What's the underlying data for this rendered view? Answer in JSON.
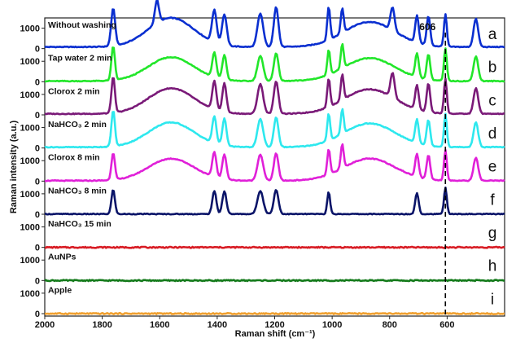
{
  "chart_data": {
    "type": "line",
    "xlabel": "Raman shift (cm⁻¹)",
    "ylabel": "Raman intensity (a.u.)",
    "xlim": [
      2000,
      400
    ],
    "x_ticks": [
      2000,
      1800,
      1600,
      1400,
      1200,
      1000,
      800,
      600
    ],
    "y_ticks": [
      0,
      1000
    ],
    "ylim_per_panel": [
      -120,
      1500
    ],
    "grid": false,
    "annotation": {
      "text": "606",
      "x": 606,
      "style": "dashed-vertical-line"
    },
    "series": [
      {
        "label": "Without washing",
        "letter": "a",
        "color": "#0a2fd0",
        "baseline": 80,
        "peaks": [
          [
            1762,
            1900,
            7
          ],
          [
            1610,
            1200,
            7
          ],
          [
            1410,
            1650,
            8
          ],
          [
            1375,
            1580,
            8
          ],
          [
            1250,
            1700,
            10
          ],
          [
            1195,
            2050,
            8
          ],
          [
            1012,
            1700,
            5
          ],
          [
            965,
            1300,
            5
          ],
          [
            790,
            1200,
            7
          ],
          [
            705,
            1400,
            6
          ],
          [
            665,
            1500,
            6
          ],
          [
            606,
            1650,
            5
          ],
          [
            500,
            1450,
            8
          ]
        ],
        "broad": [
          [
            1560,
            1500,
            80
          ],
          [
            870,
            1300,
            90
          ]
        ]
      },
      {
        "label": "Tap water 2 min",
        "letter": "b",
        "color": "#22e62a",
        "baseline": 30,
        "peaks": [
          [
            1762,
            1700,
            6
          ],
          [
            1410,
            1230,
            7
          ],
          [
            1375,
            1230,
            7
          ],
          [
            1250,
            1260,
            10
          ],
          [
            1195,
            1400,
            8
          ],
          [
            1012,
            1230,
            5
          ],
          [
            965,
            1200,
            5
          ],
          [
            705,
            1200,
            6
          ],
          [
            665,
            1270,
            6
          ],
          [
            606,
            1600,
            5
          ],
          [
            500,
            1250,
            8
          ]
        ],
        "broad": [
          [
            1560,
            1200,
            80
          ],
          [
            870,
            1150,
            90
          ]
        ]
      },
      {
        "label": "Clorox 2 min",
        "letter": "c",
        "color": "#7a1a78",
        "baseline": 50,
        "peaks": [
          [
            1762,
            1800,
            6
          ],
          [
            1410,
            1450,
            7
          ],
          [
            1375,
            1450,
            7
          ],
          [
            1250,
            1500,
            10
          ],
          [
            1195,
            1650,
            8
          ],
          [
            1012,
            1450,
            5
          ],
          [
            965,
            1300,
            5
          ],
          [
            790,
            1250,
            7
          ],
          [
            705,
            1250,
            6
          ],
          [
            665,
            1450,
            6
          ],
          [
            606,
            1750,
            5
          ],
          [
            500,
            1300,
            8
          ]
        ],
        "broad": [
          [
            1560,
            1300,
            80
          ],
          [
            870,
            1250,
            90
          ]
        ]
      },
      {
        "label": "NaHCO₃ 2 min",
        "letter": "d",
        "color": "#2ee8ee",
        "baseline": 40,
        "peaks": [
          [
            1762,
            1800,
            6
          ],
          [
            1410,
            1350,
            7
          ],
          [
            1375,
            1350,
            7
          ],
          [
            1250,
            1400,
            10
          ],
          [
            1195,
            1500,
            8
          ],
          [
            1012,
            1350,
            5
          ],
          [
            965,
            1250,
            5
          ],
          [
            705,
            1200,
            6
          ],
          [
            665,
            1300,
            6
          ],
          [
            606,
            1650,
            5
          ],
          [
            500,
            1250,
            8
          ]
        ],
        "broad": [
          [
            1560,
            1250,
            80
          ],
          [
            870,
            1200,
            90
          ]
        ]
      },
      {
        "label": "Clorox 8 min",
        "letter": "e",
        "color": "#e020d8",
        "baseline": 20,
        "peaks": [
          [
            1762,
            1350,
            6
          ],
          [
            1410,
            1250,
            7
          ],
          [
            1375,
            1250,
            7
          ],
          [
            1250,
            1300,
            10
          ],
          [
            1195,
            1350,
            8
          ],
          [
            1012,
            1250,
            5
          ],
          [
            965,
            1200,
            5
          ],
          [
            705,
            1150,
            6
          ],
          [
            665,
            1200,
            6
          ],
          [
            606,
            1500,
            5
          ],
          [
            500,
            1150,
            8
          ]
        ],
        "broad": [
          [
            1560,
            1100,
            80
          ],
          [
            870,
            1100,
            90
          ]
        ]
      },
      {
        "label": "NaHCO₃ 8 min",
        "letter": "f",
        "color": "#0a1468",
        "baseline": 10,
        "peaks": [
          [
            1762,
            1200,
            6
          ],
          [
            1410,
            1130,
            7
          ],
          [
            1375,
            1130,
            7
          ],
          [
            1250,
            1150,
            10
          ],
          [
            1195,
            1200,
            8
          ],
          [
            1012,
            1100,
            5
          ],
          [
            705,
            1050,
            6
          ],
          [
            606,
            1300,
            5
          ]
        ],
        "broad": []
      },
      {
        "label": "NaHCO₃ 15 min",
        "letter": "g",
        "color": "#d81c24",
        "baseline": 0,
        "peaks": [],
        "broad": []
      },
      {
        "label": "AuNPs",
        "letter": "h",
        "color": "#137a1a",
        "baseline": 0,
        "peaks": [],
        "broad": []
      },
      {
        "label": "Apple",
        "letter": "i",
        "color": "#f0a030",
        "baseline": 0,
        "peaks": [],
        "broad": []
      }
    ]
  }
}
